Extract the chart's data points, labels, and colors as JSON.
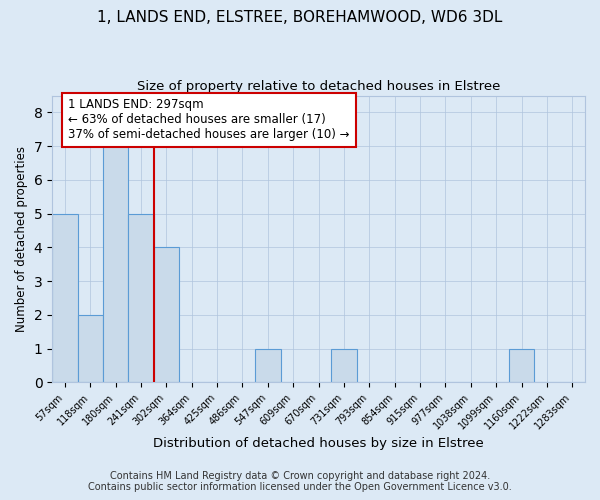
{
  "title": "1, LANDS END, ELSTREE, BOREHAMWOOD, WD6 3DL",
  "subtitle": "Size of property relative to detached houses in Elstree",
  "xlabel": "Distribution of detached houses by size in Elstree",
  "ylabel": "Number of detached properties",
  "bin_labels": [
    "57sqm",
    "118sqm",
    "180sqm",
    "241sqm",
    "302sqm",
    "364sqm",
    "425sqm",
    "486sqm",
    "547sqm",
    "609sqm",
    "670sqm",
    "731sqm",
    "793sqm",
    "854sqm",
    "915sqm",
    "977sqm",
    "1038sqm",
    "1099sqm",
    "1160sqm",
    "1222sqm",
    "1283sqm"
  ],
  "bar_heights": [
    5,
    2,
    7,
    5,
    4,
    0,
    0,
    0,
    1,
    0,
    0,
    1,
    0,
    0,
    0,
    0,
    0,
    0,
    1,
    0,
    0
  ],
  "bar_color": "#c9daea",
  "bar_edge_color": "#5b9bd5",
  "vline_color": "#cc0000",
  "annotation_line1": "1 LANDS END: 297sqm",
  "annotation_line2": "← 63% of detached houses are smaller (17)",
  "annotation_line3": "37% of semi-detached houses are larger (10) →",
  "annotation_box_color": "#cc0000",
  "ylim": [
    0,
    8.5
  ],
  "yticks": [
    0,
    1,
    2,
    3,
    4,
    5,
    6,
    7,
    8
  ],
  "footer1": "Contains HM Land Registry data © Crown copyright and database right 2024.",
  "footer2": "Contains public sector information licensed under the Open Government Licence v3.0.",
  "background_color": "#dce9f5",
  "plot_bg_color": "#dce9f5",
  "title_fontsize": 11,
  "subtitle_fontsize": 9.5,
  "xlabel_fontsize": 9.5,
  "ylabel_fontsize": 8.5,
  "footer_fontsize": 7,
  "annot_fontsize": 8.5
}
